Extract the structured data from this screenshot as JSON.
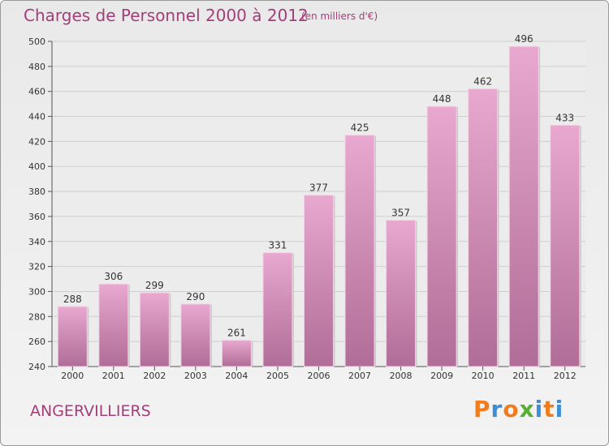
{
  "header": {
    "title": "Charges de Personnel 2000 à 2012",
    "subtitle": "(en milliers d'€)"
  },
  "footer": {
    "city": "ANGERVILLIERS",
    "logo": "Proxiti"
  },
  "colors": {
    "text": "#a23e78",
    "bar_top": "#e8a8cf",
    "bar_bottom": "#b06d97",
    "axis": "#555555",
    "grid": "#cfcfcf",
    "logo": [
      "#f07c1e",
      "#3c8fd6",
      "#f07c1e",
      "#58b030",
      "#3c8fd6",
      "#f07c1e",
      "#3c8fd6"
    ]
  },
  "chart_data": {
    "type": "bar",
    "title": "Charges de Personnel 2000 à 2012",
    "subtitle": "(en milliers d'€)",
    "categories": [
      "2000",
      "2001",
      "2002",
      "2003",
      "2004",
      "2005",
      "2006",
      "2007",
      "2008",
      "2009",
      "2010",
      "2011",
      "2012"
    ],
    "values": [
      288,
      306,
      299,
      290,
      261,
      331,
      377,
      425,
      357,
      448,
      462,
      496,
      433
    ],
    "ylim": [
      240,
      500
    ],
    "yticks": [
      240,
      260,
      280,
      300,
      320,
      340,
      360,
      380,
      400,
      420,
      440,
      460,
      480,
      500
    ],
    "grid": true,
    "data_labels": true
  }
}
